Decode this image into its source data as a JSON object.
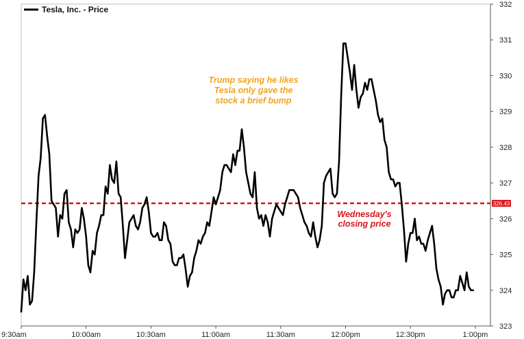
{
  "chart_data": {
    "type": "line",
    "legend": "Tesla, Inc. - Price",
    "series": [
      {
        "name": "Tesla, Inc. - Price",
        "color": "#000000",
        "points": [
          [
            "9:30am",
            323.4
          ],
          [
            "9:31am",
            324.3
          ],
          [
            "9:32am",
            324.0
          ],
          [
            "9:33am",
            324.4
          ],
          [
            "9:34am",
            323.6
          ],
          [
            "9:35am",
            323.7
          ],
          [
            "9:36am",
            324.5
          ],
          [
            "9:37am",
            325.9
          ],
          [
            "9:38am",
            327.2
          ],
          [
            "9:39am",
            327.7
          ],
          [
            "9:40am",
            328.8
          ],
          [
            "9:41am",
            328.9
          ],
          [
            "9:42am",
            328.3
          ],
          [
            "9:43am",
            327.8
          ],
          [
            "9:44am",
            326.5
          ],
          [
            "9:45am",
            326.4
          ],
          [
            "9:46am",
            326.3
          ],
          [
            "9:47am",
            325.5
          ],
          [
            "9:48am",
            326.1
          ],
          [
            "9:49am",
            326.0
          ],
          [
            "9:50am",
            326.7
          ],
          [
            "9:51am",
            326.8
          ],
          [
            "9:52am",
            325.9
          ],
          [
            "9:53am",
            325.7
          ],
          [
            "9:54am",
            325.2
          ],
          [
            "9:55am",
            325.7
          ],
          [
            "9:56am",
            325.6
          ],
          [
            "9:57am",
            325.7
          ],
          [
            "9:58am",
            326.3
          ],
          [
            "9:59am",
            326.0
          ],
          [
            "10:00am",
            325.5
          ],
          [
            "10:01am",
            324.7
          ],
          [
            "10:02am",
            324.5
          ],
          [
            "10:03am",
            325.1
          ],
          [
            "10:04am",
            325.0
          ],
          [
            "10:05am",
            325.6
          ],
          [
            "10:06am",
            325.8
          ],
          [
            "10:07am",
            326.1
          ],
          [
            "10:08am",
            326.1
          ],
          [
            "10:09am",
            326.9
          ],
          [
            "10:10am",
            326.7
          ],
          [
            "10:11am",
            327.5
          ],
          [
            "10:12am",
            327.1
          ],
          [
            "10:13am",
            327.0
          ],
          [
            "10:14am",
            327.6
          ],
          [
            "10:15am",
            326.7
          ],
          [
            "10:16am",
            326.6
          ],
          [
            "10:17am",
            325.8
          ],
          [
            "10:18am",
            324.9
          ],
          [
            "10:19am",
            325.4
          ],
          [
            "10:20am",
            325.9
          ],
          [
            "10:21am",
            326.0
          ],
          [
            "10:22am",
            326.1
          ],
          [
            "10:23am",
            325.8
          ],
          [
            "10:24am",
            325.7
          ],
          [
            "10:25am",
            325.9
          ],
          [
            "10:26am",
            326.3
          ],
          [
            "10:27am",
            326.4
          ],
          [
            "10:28am",
            326.6
          ],
          [
            "10:29am",
            326.2
          ],
          [
            "10:30am",
            325.6
          ],
          [
            "10:31am",
            325.5
          ],
          [
            "10:32am",
            325.5
          ],
          [
            "10:33am",
            325.6
          ],
          [
            "10:34am",
            325.4
          ],
          [
            "10:35am",
            325.4
          ],
          [
            "10:36am",
            325.9
          ],
          [
            "10:37am",
            325.8
          ],
          [
            "10:38am",
            325.4
          ],
          [
            "10:39am",
            325.3
          ],
          [
            "10:40am",
            324.8
          ],
          [
            "10:41am",
            324.7
          ],
          [
            "10:42am",
            324.7
          ],
          [
            "10:43am",
            324.9
          ],
          [
            "10:44am",
            324.9
          ],
          [
            "10:45am",
            325.0
          ],
          [
            "10:46am",
            324.6
          ],
          [
            "10:47am",
            324.1
          ],
          [
            "10:48am",
            324.4
          ],
          [
            "10:49am",
            324.5
          ],
          [
            "10:50am",
            324.9
          ],
          [
            "10:51am",
            325.1
          ],
          [
            "10:52am",
            325.4
          ],
          [
            "10:53am",
            325.3
          ],
          [
            "10:54am",
            325.5
          ],
          [
            "10:55am",
            325.6
          ],
          [
            "10:56am",
            325.9
          ],
          [
            "10:57am",
            325.8
          ],
          [
            "10:58am",
            326.2
          ],
          [
            "10:59am",
            326.6
          ],
          [
            "11:00am",
            326.4
          ],
          [
            "11:01am",
            326.6
          ],
          [
            "11:02am",
            326.8
          ],
          [
            "11:03am",
            327.3
          ],
          [
            "11:04am",
            327.5
          ],
          [
            "11:05am",
            327.5
          ],
          [
            "11:06am",
            327.4
          ],
          [
            "11:07am",
            327.3
          ],
          [
            "11:08am",
            327.8
          ],
          [
            "11:09am",
            327.5
          ],
          [
            "11:10am",
            327.9
          ],
          [
            "11:11am",
            327.9
          ],
          [
            "11:12am",
            328.5
          ],
          [
            "11:13am",
            328.0
          ],
          [
            "11:14am",
            327.3
          ],
          [
            "11:15am",
            327.0
          ],
          [
            "11:16am",
            326.7
          ],
          [
            "11:17am",
            326.6
          ],
          [
            "11:18am",
            327.3
          ],
          [
            "11:19am",
            326.3
          ],
          [
            "11:20am",
            326.0
          ],
          [
            "11:21am",
            326.1
          ],
          [
            "11:22am",
            325.8
          ],
          [
            "11:23am",
            326.1
          ],
          [
            "11:24am",
            325.9
          ],
          [
            "11:25am",
            325.5
          ],
          [
            "11:26am",
            326.0
          ],
          [
            "11:27am",
            326.2
          ],
          [
            "11:28am",
            326.4
          ],
          [
            "11:29am",
            326.3
          ],
          [
            "11:30am",
            326.2
          ],
          [
            "11:31am",
            326.1
          ],
          [
            "11:32am",
            326.4
          ],
          [
            "11:33am",
            326.6
          ],
          [
            "11:34am",
            326.8
          ],
          [
            "11:35am",
            326.8
          ],
          [
            "11:36am",
            326.8
          ],
          [
            "11:37am",
            326.7
          ],
          [
            "11:38am",
            326.6
          ],
          [
            "11:39am",
            326.3
          ],
          [
            "11:40am",
            326.1
          ],
          [
            "11:41am",
            325.9
          ],
          [
            "11:42am",
            325.8
          ],
          [
            "11:43am",
            325.6
          ],
          [
            "11:44am",
            325.5
          ],
          [
            "11:45am",
            325.9
          ],
          [
            "11:46am",
            325.5
          ],
          [
            "11:47am",
            325.2
          ],
          [
            "11:48am",
            325.4
          ],
          [
            "11:49am",
            325.8
          ],
          [
            "11:50am",
            327.0
          ],
          [
            "11:51am",
            327.2
          ],
          [
            "11:52am",
            327.3
          ],
          [
            "11:53am",
            327.4
          ],
          [
            "11:54am",
            326.7
          ],
          [
            "11:55am",
            326.6
          ],
          [
            "11:56am",
            326.7
          ],
          [
            "11:57am",
            327.6
          ],
          [
            "11:58am",
            329.5
          ],
          [
            "11:59am",
            330.9
          ],
          [
            "12:00pm",
            330.9
          ],
          [
            "12:01pm",
            330.5
          ],
          [
            "12:02pm",
            330.1
          ],
          [
            "12:03pm",
            329.6
          ],
          [
            "12:04pm",
            330.3
          ],
          [
            "12:05pm",
            329.6
          ],
          [
            "12:06pm",
            329.1
          ],
          [
            "12:07pm",
            329.4
          ],
          [
            "12:08pm",
            329.5
          ],
          [
            "12:09pm",
            329.8
          ],
          [
            "12:10pm",
            329.6
          ],
          [
            "12:11pm",
            329.9
          ],
          [
            "12:12pm",
            329.9
          ],
          [
            "12:13pm",
            329.6
          ],
          [
            "12:14pm",
            329.3
          ],
          [
            "12:15pm",
            328.9
          ],
          [
            "12:16pm",
            328.7
          ],
          [
            "12:17pm",
            328.8
          ],
          [
            "12:18pm",
            328.2
          ],
          [
            "12:19pm",
            328.0
          ],
          [
            "12:20pm",
            327.3
          ],
          [
            "12:21pm",
            327.1
          ],
          [
            "12:22pm",
            327.1
          ],
          [
            "12:23pm",
            326.9
          ],
          [
            "12:24pm",
            327.0
          ],
          [
            "12:25pm",
            327.0
          ],
          [
            "12:26pm",
            326.4
          ],
          [
            "12:27pm",
            325.7
          ],
          [
            "12:28pm",
            324.8
          ],
          [
            "12:29pm",
            325.3
          ],
          [
            "12:30pm",
            325.6
          ],
          [
            "12:31pm",
            325.6
          ],
          [
            "12:32pm",
            326.0
          ],
          [
            "12:33pm",
            325.4
          ],
          [
            "12:34pm",
            325.5
          ],
          [
            "12:35pm",
            325.3
          ],
          [
            "12:36pm",
            325.3
          ],
          [
            "12:37pm",
            325.1
          ],
          [
            "12:38pm",
            325.4
          ],
          [
            "12:39pm",
            325.6
          ],
          [
            "12:40pm",
            325.8
          ],
          [
            "12:41pm",
            325.3
          ],
          [
            "12:42pm",
            324.6
          ],
          [
            "12:43pm",
            324.3
          ],
          [
            "12:44pm",
            324.1
          ],
          [
            "12:45pm",
            323.6
          ],
          [
            "12:46pm",
            323.9
          ],
          [
            "12:47pm",
            324.0
          ],
          [
            "12:48pm",
            324.0
          ],
          [
            "12:49pm",
            323.8
          ],
          [
            "12:50pm",
            323.8
          ],
          [
            "12:51pm",
            324.0
          ],
          [
            "12:52pm",
            324.0
          ],
          [
            "12:53pm",
            324.4
          ],
          [
            "12:54pm",
            324.2
          ],
          [
            "12:55pm",
            324.0
          ],
          [
            "12:56pm",
            324.5
          ],
          [
            "12:57pm",
            324.1
          ],
          [
            "12:58pm",
            324.0
          ],
          [
            "12:59pm",
            324.0
          ]
        ]
      }
    ],
    "x_ticks": [
      "9:30am",
      "10:00am",
      "10:30am",
      "11:00am",
      "11:30am",
      "12:00pm",
      "12:30pm",
      "1:00pm"
    ],
    "y_ticks": [
      323,
      324,
      325,
      326,
      327,
      328,
      329,
      330,
      331,
      332
    ],
    "ylim": [
      323,
      332
    ],
    "x_range": [
      "9:30am",
      "1:07pm"
    ],
    "y_axis_position": "right",
    "grid": false,
    "legend_position": "top-left",
    "reference_line": {
      "value": 326.43,
      "label": "326.43",
      "color": "#d9141b",
      "style": "dashed"
    },
    "annotations": [
      {
        "text_lines": [
          "Trump saying he likes",
          "Tesla only gave the",
          "stock a brief bump"
        ],
        "color": "#f0a41e"
      },
      {
        "text_lines": [
          "Wednesday's",
          "closing price"
        ],
        "color": "#d9141b"
      }
    ]
  }
}
